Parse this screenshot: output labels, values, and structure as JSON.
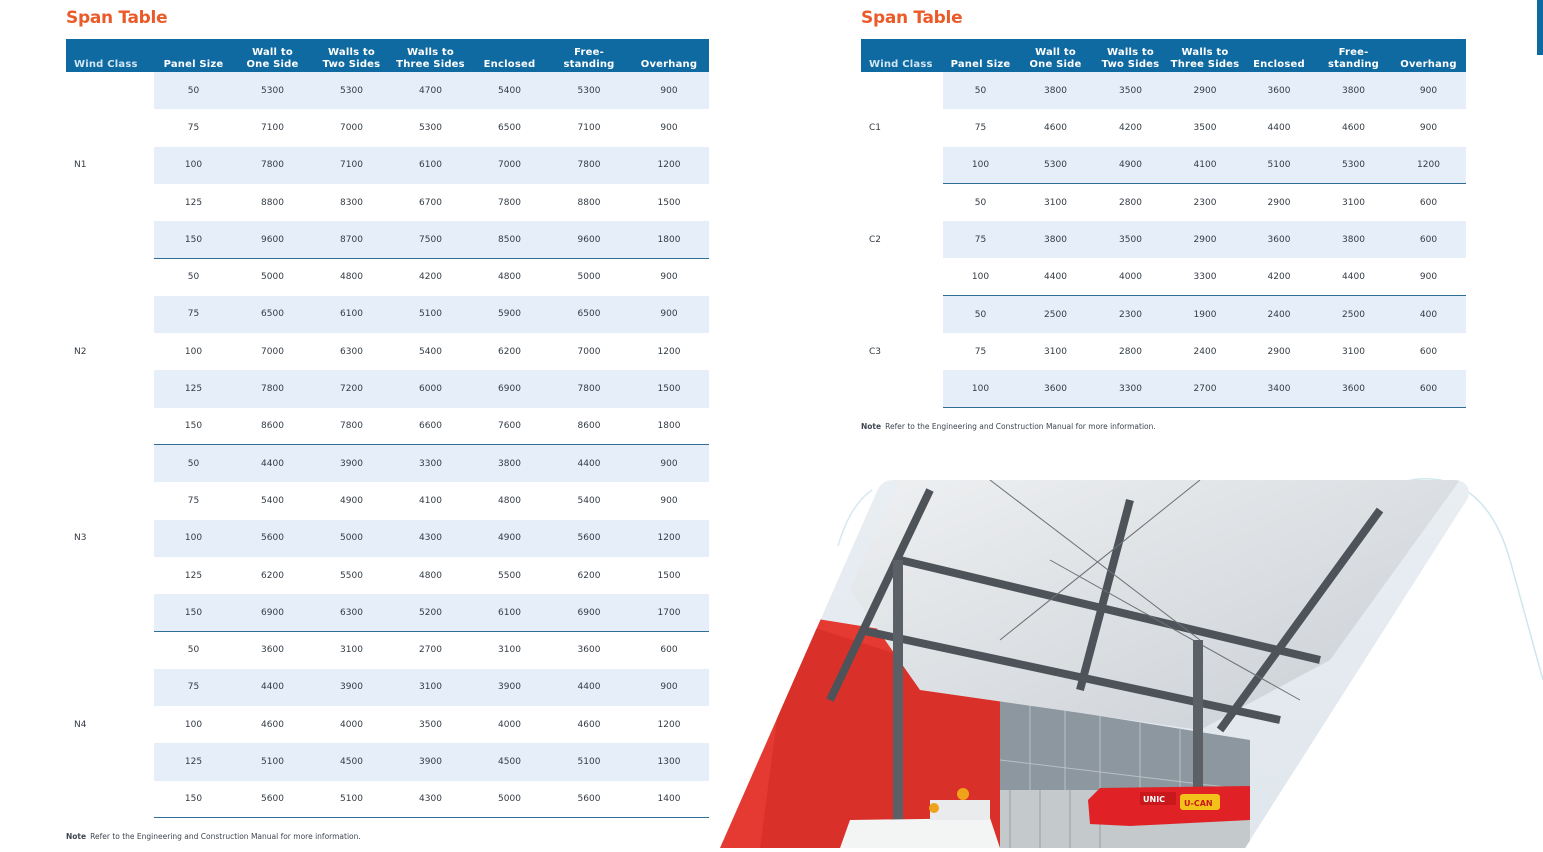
{
  "left": {
    "title": "Span Table",
    "headers": [
      "Wind Class",
      "Panel Size",
      "Wall to\nOne Side",
      "Walls to\nTwo Sides",
      "Walls to\nThree Sides",
      "Enclosed",
      "Free-\nstanding",
      "Overhang"
    ],
    "groups": [
      {
        "class": "N1",
        "rows": [
          [
            "50",
            "5300",
            "5300",
            "4700",
            "5400",
            "5300",
            "900"
          ],
          [
            "75",
            "7100",
            "7000",
            "5300",
            "6500",
            "7100",
            "900"
          ],
          [
            "100",
            "7800",
            "7100",
            "6100",
            "7000",
            "7800",
            "1200"
          ],
          [
            "125",
            "8800",
            "8300",
            "6700",
            "7800",
            "8800",
            "1500"
          ],
          [
            "150",
            "9600",
            "8700",
            "7500",
            "8500",
            "9600",
            "1800"
          ]
        ]
      },
      {
        "class": "N2",
        "rows": [
          [
            "50",
            "5000",
            "4800",
            "4200",
            "4800",
            "5000",
            "900"
          ],
          [
            "75",
            "6500",
            "6100",
            "5100",
            "5900",
            "6500",
            "900"
          ],
          [
            "100",
            "7000",
            "6300",
            "5400",
            "6200",
            "7000",
            "1200"
          ],
          [
            "125",
            "7800",
            "7200",
            "6000",
            "6900",
            "7800",
            "1500"
          ],
          [
            "150",
            "8600",
            "7800",
            "6600",
            "7600",
            "8600",
            "1800"
          ]
        ]
      },
      {
        "class": "N3",
        "rows": [
          [
            "50",
            "4400",
            "3900",
            "3300",
            "3800",
            "4400",
            "900"
          ],
          [
            "75",
            "5400",
            "4900",
            "4100",
            "4800",
            "5400",
            "900"
          ],
          [
            "100",
            "5600",
            "5000",
            "4300",
            "4900",
            "5600",
            "1200"
          ],
          [
            "125",
            "6200",
            "5500",
            "4800",
            "5500",
            "6200",
            "1500"
          ],
          [
            "150",
            "6900",
            "6300",
            "5200",
            "6100",
            "6900",
            "1700"
          ]
        ]
      },
      {
        "class": "N4",
        "rows": [
          [
            "50",
            "3600",
            "3100",
            "2700",
            "3100",
            "3600",
            "600"
          ],
          [
            "75",
            "4400",
            "3900",
            "3100",
            "3900",
            "4400",
            "900"
          ],
          [
            "100",
            "4600",
            "4000",
            "3500",
            "4000",
            "4600",
            "1200"
          ],
          [
            "125",
            "5100",
            "4500",
            "3900",
            "4500",
            "5100",
            "1300"
          ],
          [
            "150",
            "5600",
            "5100",
            "4300",
            "5000",
            "5600",
            "1400"
          ]
        ]
      }
    ],
    "note_label": "Note",
    "note_text": "Refer to the Engineering and Construction Manual for more information."
  },
  "right": {
    "title": "Span Table",
    "headers": [
      "Wind Class",
      "Panel Size",
      "Wall to\nOne Side",
      "Walls to\nTwo Sides",
      "Walls to\nThree Sides",
      "Enclosed",
      "Free-\nstanding",
      "Overhang"
    ],
    "groups": [
      {
        "class": "C1",
        "rows": [
          [
            "50",
            "3800",
            "3500",
            "2900",
            "3600",
            "3800",
            "900"
          ],
          [
            "75",
            "4600",
            "4200",
            "3500",
            "4400",
            "4600",
            "900"
          ],
          [
            "100",
            "5300",
            "4900",
            "4100",
            "5100",
            "5300",
            "1200"
          ]
        ]
      },
      {
        "class": "C2",
        "rows": [
          [
            "50",
            "3100",
            "2800",
            "2300",
            "2900",
            "3100",
            "600"
          ],
          [
            "75",
            "3800",
            "3500",
            "2900",
            "3600",
            "3800",
            "600"
          ],
          [
            "100",
            "4400",
            "4000",
            "3300",
            "4200",
            "4400",
            "900"
          ]
        ]
      },
      {
        "class": "C3",
        "rows": [
          [
            "50",
            "2500",
            "2300",
            "1900",
            "2400",
            "2500",
            "400"
          ],
          [
            "75",
            "3100",
            "2800",
            "2400",
            "2900",
            "3100",
            "600"
          ],
          [
            "100",
            "3600",
            "3300",
            "2700",
            "3400",
            "3600",
            "600"
          ]
        ]
      }
    ],
    "note_label": "Note",
    "note_text": "Refer to the Engineering and Construction Manual for more information."
  },
  "photo": {
    "description_icon": "canopy-truck-photo",
    "crane_brand": "UNIC",
    "crane_model": "U-CAN"
  },
  "colors": {
    "title": "#ea5b29",
    "header_bg": "#0f6aa1",
    "row_alt": "#e6eff9"
  }
}
